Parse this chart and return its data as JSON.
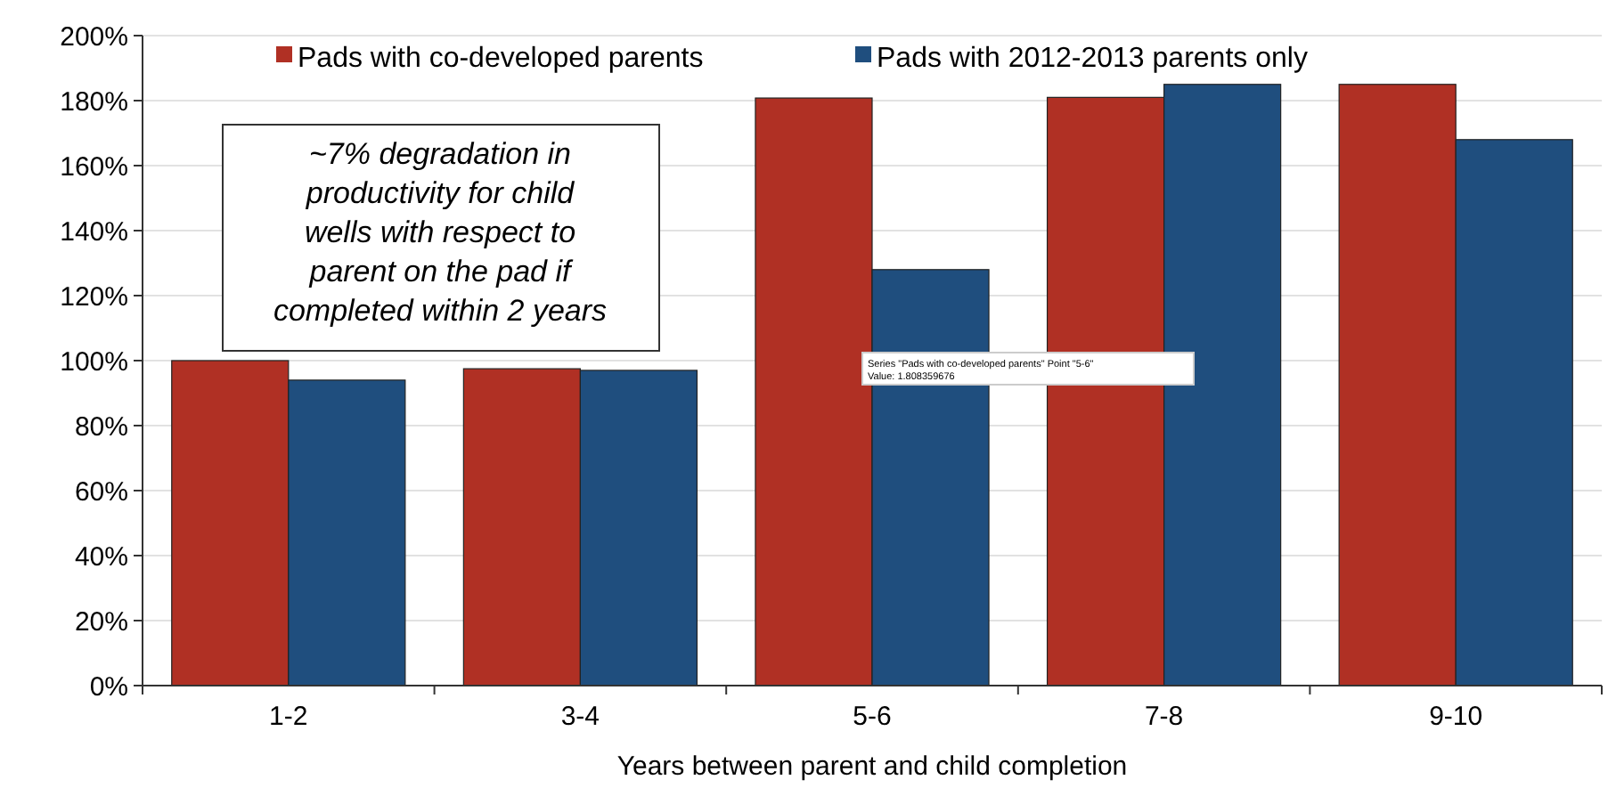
{
  "chart_data": {
    "type": "bar",
    "xlabel": "Years between parent and child completion",
    "categories": [
      "1-2",
      "3-4",
      "5-6",
      "7-8",
      "9-10"
    ],
    "series": [
      {
        "name": "Pads with co-developed parents",
        "color": "#b03024",
        "values": [
          100,
          97.5,
          180.8,
          181,
          185
        ]
      },
      {
        "name": "Pads with 2012-2013 parents only",
        "color": "#1f4e7e",
        "values": [
          94,
          97,
          128,
          185,
          168
        ]
      }
    ],
    "ylim": [
      0,
      200
    ],
    "yticks": [
      {
        "value": 0,
        "label": "0%"
      },
      {
        "value": 20,
        "label": "20%"
      },
      {
        "value": 40,
        "label": "40%"
      },
      {
        "value": 60,
        "label": "60%"
      },
      {
        "value": 80,
        "label": "80%"
      },
      {
        "value": 100,
        "label": "100%"
      },
      {
        "value": 120,
        "label": "120%"
      },
      {
        "value": 140,
        "label": "140%"
      },
      {
        "value": 160,
        "label": "160%"
      },
      {
        "value": 180,
        "label": "180%"
      },
      {
        "value": 200,
        "label": "200%"
      }
    ],
    "grid": "y",
    "legend": "top",
    "annotations": [
      "~7% degradation in productivity for child wells with respect to parent on the pad if completed within 2 years",
      "Series \"Pads with co-developed parents\" Point \"5-6\" Value: 1.808359676"
    ]
  }
}
